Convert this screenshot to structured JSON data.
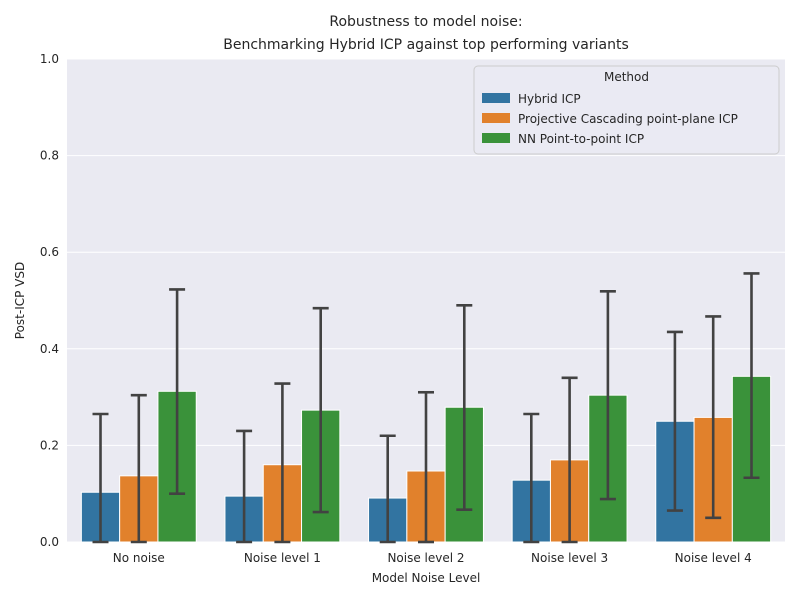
{
  "chart_data": {
    "type": "bar",
    "title_line1": "Robustness to model noise:",
    "title_line2": "Benchmarking Hybrid ICP against top performing variants",
    "xlabel": "Model Noise Level",
    "ylabel": "Post-ICP VSD",
    "ylim": [
      0,
      1.0
    ],
    "yticks": [
      "0.0",
      "0.2",
      "0.4",
      "0.6",
      "0.8",
      "1.0"
    ],
    "ytick_values": [
      0.0,
      0.2,
      0.4,
      0.6,
      0.8,
      1.0
    ],
    "categories": [
      "No noise",
      "Noise level 1",
      "Noise level 2",
      "Noise level 3",
      "Noise level 4"
    ],
    "legend_title": "Method",
    "legend_position": "top-right",
    "series": [
      {
        "name": "Hybrid ICP",
        "color": "#3274a1",
        "values": [
          0.103,
          0.095,
          0.091,
          0.128,
          0.25
        ],
        "err_low": [
          0.0,
          0.0,
          0.0,
          0.0,
          0.065
        ],
        "err_high": [
          0.265,
          0.23,
          0.22,
          0.265,
          0.435
        ]
      },
      {
        "name": "Projective Cascading point-plane ICP",
        "color": "#e1812c",
        "values": [
          0.137,
          0.16,
          0.147,
          0.17,
          0.258
        ],
        "err_low": [
          0.0,
          0.0,
          0.0,
          0.0,
          0.05
        ],
        "err_high": [
          0.304,
          0.328,
          0.31,
          0.34,
          0.467
        ]
      },
      {
        "name": "NN Point-to-point ICP",
        "color": "#3a923a",
        "values": [
          0.312,
          0.273,
          0.279,
          0.304,
          0.343
        ],
        "err_low": [
          0.1,
          0.062,
          0.067,
          0.089,
          0.133
        ],
        "err_high": [
          0.523,
          0.484,
          0.49,
          0.519,
          0.556
        ]
      }
    ]
  }
}
